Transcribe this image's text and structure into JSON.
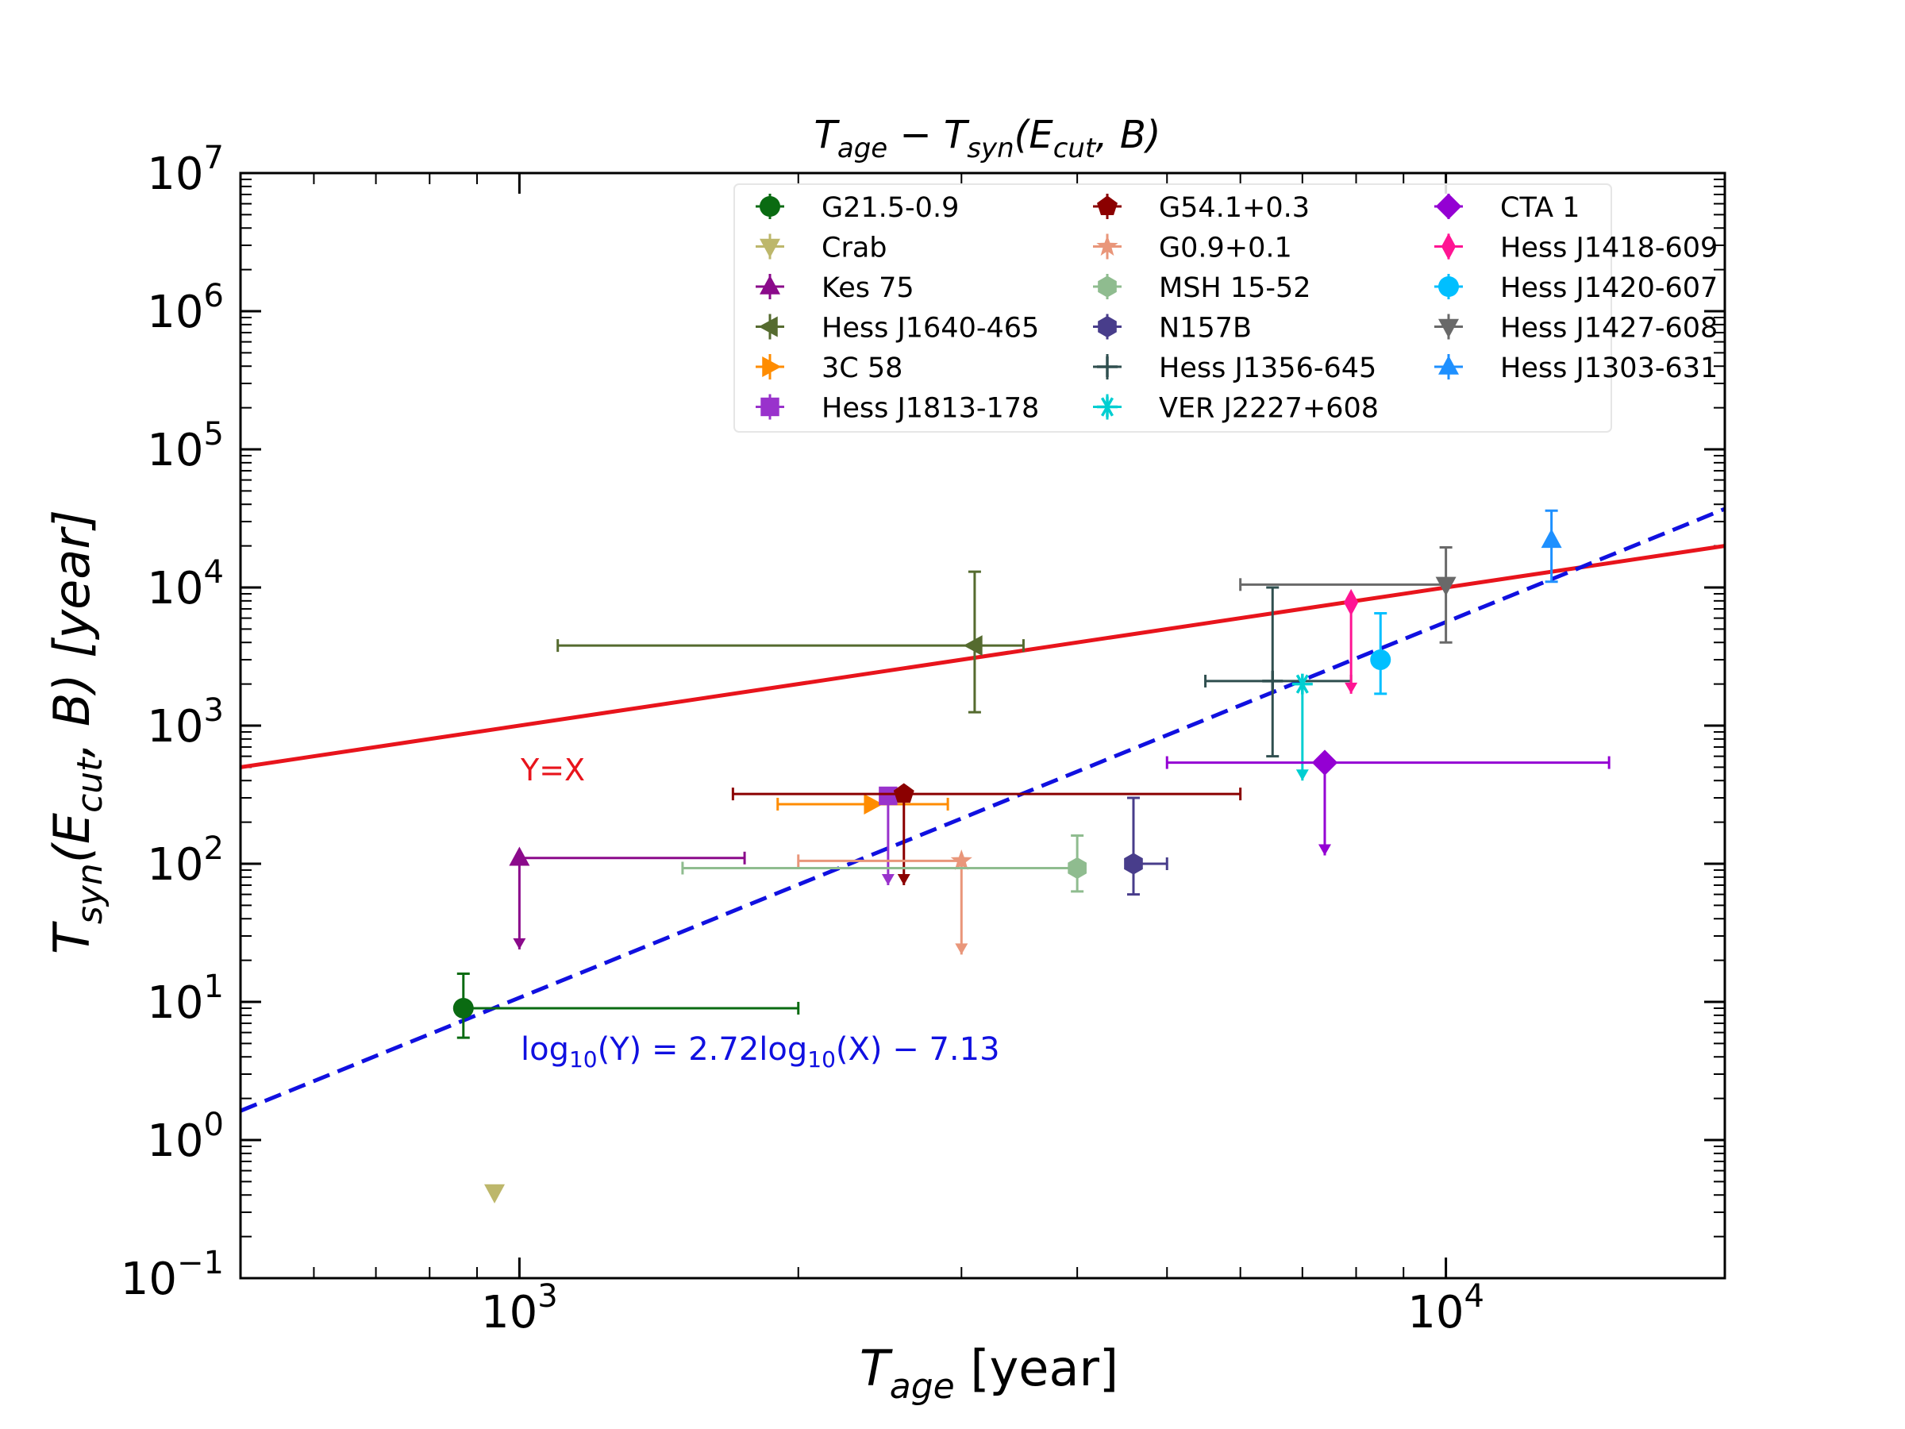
{
  "chart_data": {
    "type": "scatter",
    "title": "T_age − T_syn(E_cut, B)",
    "title_parts": {
      "t1": "T",
      "s1": "age",
      "mid": " − T",
      "s2": "syn",
      "open": "(E",
      "s3": "cut",
      "close": ", B)"
    },
    "xlabel_parts": {
      "t": "T",
      "s": "age",
      "rest": " [year]"
    },
    "ylabel_parts": {
      "t": "T",
      "s1": "syn",
      "open": "(E",
      "s2": "cut",
      "close": ", B) [year]"
    },
    "xscale": "log",
    "yscale": "log",
    "xlim": [
      500,
      20000
    ],
    "ylim": [
      0.1,
      10000000
    ],
    "xticks": [
      {
        "base": "10",
        "exp": "3",
        "value": 1000
      },
      {
        "base": "10",
        "exp": "4",
        "value": 10000
      }
    ],
    "yticks": [
      {
        "base": "10",
        "exp": "−1",
        "value": 0.1
      },
      {
        "base": "10",
        "exp": "0",
        "value": 1
      },
      {
        "base": "10",
        "exp": "1",
        "value": 10
      },
      {
        "base": "10",
        "exp": "2",
        "value": 100
      },
      {
        "base": "10",
        "exp": "3",
        "value": 1000
      },
      {
        "base": "10",
        "exp": "4",
        "value": 10000
      },
      {
        "base": "10",
        "exp": "5",
        "value": 100000
      },
      {
        "base": "10",
        "exp": "6",
        "value": 1000000
      },
      {
        "base": "10",
        "exp": "7",
        "value": 10000000
      }
    ],
    "lines": [
      {
        "name": "Y=X",
        "label": "Y=X",
        "color": "#e8141c",
        "style": "solid",
        "slope": 1,
        "intercept": 0
      },
      {
        "name": "fit",
        "label_parts": {
          "a": "log",
          "b": "10",
          "c": "(Y) = 2.72log",
          "d": "10",
          "e": "(X) − 7.13"
        },
        "color": "#1010e0",
        "style": "dashed",
        "slope": 2.72,
        "intercept": -7.13
      }
    ],
    "series": [
      {
        "name": "G21.5-0.9",
        "color": "#0a6b12",
        "marker": "circle",
        "x": 870,
        "y": 9,
        "xerr": [
          870,
          2000
        ],
        "yerr": [
          5.5,
          16
        ],
        "upper_limit": false
      },
      {
        "name": "Crab",
        "color": "#bdb76b",
        "marker": "triangle-down",
        "x": 940,
        "y": 0.42,
        "xerr": null,
        "yerr": null,
        "upper_limit": false
      },
      {
        "name": "Kes 75",
        "color": "#8b0a8b",
        "marker": "triangle-up",
        "x": 1000,
        "y": 110,
        "xerr": [
          1000,
          1750
        ],
        "yerr": null,
        "upper_limit": true,
        "limit_to": 24
      },
      {
        "name": "Hess J1640-465",
        "color": "#556b2f",
        "marker": "triangle-left",
        "x": 3100,
        "y": 3800,
        "xerr": [
          1100,
          3500
        ],
        "yerr": [
          1250,
          13000
        ],
        "upper_limit": false
      },
      {
        "name": "3C 58",
        "color": "#ff8c00",
        "marker": "triangle-right",
        "x": 2400,
        "y": 270,
        "xerr": [
          1900,
          2900
        ],
        "yerr": null,
        "upper_limit": false
      },
      {
        "name": "Hess J1813-178",
        "color": "#9932cc",
        "marker": "square",
        "x": 2500,
        "y": 310,
        "xerr": null,
        "yerr": null,
        "upper_limit": true,
        "limit_to": 70
      },
      {
        "name": "G54.1+0.3",
        "color": "#8b0000",
        "marker": "pentagon",
        "x": 2600,
        "y": 320,
        "xerr": [
          1700,
          6000
        ],
        "yerr": null,
        "upper_limit": true,
        "limit_to": 70
      },
      {
        "name": "G0.9+0.1",
        "color": "#e9967a",
        "marker": "star",
        "x": 3000,
        "y": 105,
        "xerr": [
          2000,
          3000
        ],
        "yerr": null,
        "upper_limit": true,
        "limit_to": 22
      },
      {
        "name": "MSH 15-52",
        "color": "#8fbc8f",
        "marker": "hexagon",
        "x": 4000,
        "y": 93,
        "xerr": [
          1500,
          4000
        ],
        "yerr": [
          63,
          160
        ],
        "upper_limit": false
      },
      {
        "name": "N157B",
        "color": "#483d8b",
        "marker": "hexagon",
        "x": 4600,
        "y": 100,
        "xerr": [
          4600,
          5000
        ],
        "yerr": [
          60,
          300
        ],
        "upper_limit": false
      },
      {
        "name": "Hess J1356-645",
        "color": "#2f4f4f",
        "marker": "plus",
        "x": 6500,
        "y": 2100,
        "xerr": [
          5500,
          7900
        ],
        "yerr": [
          600,
          10000
        ],
        "upper_limit": false
      },
      {
        "name": "VER J2227+608",
        "color": "#00ced1",
        "marker": "asterisk",
        "x": 7000,
        "y": 2000,
        "xerr": null,
        "yerr": null,
        "upper_limit": true,
        "limit_to": 400
      },
      {
        "name": "CTA 1",
        "color": "#9400d3",
        "marker": "diamond",
        "x": 7400,
        "y": 540,
        "xerr": [
          5000,
          15000
        ],
        "yerr": null,
        "upper_limit": true,
        "limit_to": 115
      },
      {
        "name": "Hess J1418-609",
        "color": "#ff1493",
        "marker": "thin-diamond",
        "x": 7900,
        "y": 7800,
        "xerr": null,
        "yerr": null,
        "upper_limit": true,
        "limit_to": 1700
      },
      {
        "name": "Hess J1420-607",
        "color": "#00bfff",
        "marker": "circle",
        "x": 8500,
        "y": 3000,
        "xerr": null,
        "yerr": [
          1700,
          6500
        ],
        "upper_limit": false
      },
      {
        "name": "Hess J1427-608",
        "color": "#696969",
        "marker": "triangle-down",
        "x": 10000,
        "y": 10500,
        "xerr": [
          6000,
          10000
        ],
        "yerr": [
          4000,
          19500
        ],
        "upper_limit": false
      },
      {
        "name": "Hess J1303-631",
        "color": "#1e90ff",
        "marker": "triangle-up",
        "x": 13000,
        "y": 22000,
        "xerr": null,
        "yerr": [
          11000,
          36000
        ],
        "upper_limit": false
      }
    ],
    "legend": {
      "location": "upper-center",
      "columns": 3
    },
    "grid": false
  }
}
